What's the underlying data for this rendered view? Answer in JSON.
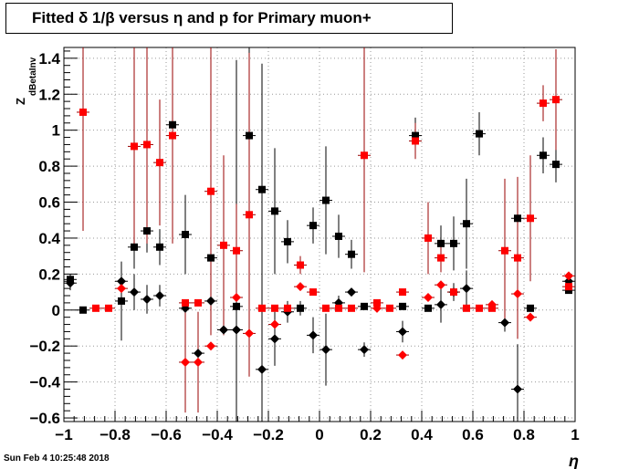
{
  "chart_data": {
    "type": "scatter",
    "title": "Fitted δ 1/β versus η and p for Primary muon+",
    "xlabel": "η",
    "ylabel": "Z",
    "ylabel_sub": "dBetaInv",
    "xlim": [
      -1,
      1
    ],
    "ylim": [
      -0.62,
      1.46
    ],
    "grid": true,
    "x_ticks": [
      "−1",
      "−0.8",
      "−0.6",
      "−0.4",
      "−0.2",
      "0",
      "0.2",
      "0.4",
      "0.6",
      "0.8",
      "1"
    ],
    "y_ticks": [
      "−0.6",
      "−0.4",
      "−0.2",
      "0",
      "0.2",
      "0.4",
      "0.6",
      "0.8",
      "1",
      "1.2",
      "1.4"
    ],
    "colors": {
      "black": "#000000",
      "red": "#ff0000",
      "red_error": "#990000"
    },
    "series": [
      {
        "marker": "square",
        "color": "black",
        "points": [
          {
            "x": -0.975,
            "y": 0.17,
            "err": 0.03
          },
          {
            "x": -0.925,
            "y": 0.0,
            "err": 0.0
          },
          {
            "x": -0.775,
            "y": 0.05,
            "err": 0.22
          },
          {
            "x": -0.725,
            "y": 0.35,
            "err": 0.12
          },
          {
            "x": -0.675,
            "y": 0.44,
            "err": 0.12
          },
          {
            "x": -0.625,
            "y": 0.35,
            "err": 0.1
          },
          {
            "x": -0.575,
            "y": 1.03,
            "err": 0.08
          },
          {
            "x": -0.525,
            "y": 0.42,
            "err": 0.22
          },
          {
            "x": -0.425,
            "y": 0.29,
            "err": 0.08
          },
          {
            "x": -0.325,
            "y": 0.02,
            "err": 0.05
          },
          {
            "x": -0.275,
            "y": 0.97,
            "err": 0.6
          },
          {
            "x": -0.225,
            "y": 0.67,
            "err": 0.7
          },
          {
            "x": -0.175,
            "y": 0.55,
            "err": 0.35
          },
          {
            "x": -0.125,
            "y": 0.38,
            "err": 0.12
          },
          {
            "x": -0.075,
            "y": 0.01,
            "err": 0.04
          },
          {
            "x": -0.025,
            "y": 0.47,
            "err": 0.1
          },
          {
            "x": 0.025,
            "y": 0.61,
            "err": 0.3
          },
          {
            "x": 0.075,
            "y": 0.41,
            "err": 0.12
          },
          {
            "x": 0.125,
            "y": 0.31,
            "err": 0.08
          },
          {
            "x": 0.175,
            "y": 0.02,
            "err": 0.0
          },
          {
            "x": 0.325,
            "y": 0.02,
            "err": 0.0
          },
          {
            "x": 0.375,
            "y": 0.97,
            "err": 0.1
          },
          {
            "x": 0.425,
            "y": 0.01,
            "err": 0.0
          },
          {
            "x": 0.475,
            "y": 0.37,
            "err": 0.1
          },
          {
            "x": 0.525,
            "y": 0.37,
            "err": 0.15
          },
          {
            "x": 0.575,
            "y": 0.48,
            "err": 0.25
          },
          {
            "x": 0.625,
            "y": 0.98,
            "err": 0.12
          },
          {
            "x": 0.775,
            "y": 0.51,
            "err": 0.2
          },
          {
            "x": 0.825,
            "y": 0.01,
            "err": 0.0
          },
          {
            "x": 0.875,
            "y": 0.86,
            "err": 0.1
          },
          {
            "x": 0.925,
            "y": 0.81,
            "err": 0.1
          },
          {
            "x": 0.975,
            "y": 0.11,
            "err": 0.02
          }
        ]
      },
      {
        "marker": "diamond",
        "color": "black",
        "points": [
          {
            "x": -0.975,
            "y": 0.15,
            "err": 0.04
          },
          {
            "x": -0.775,
            "y": 0.16,
            "err": 0.1
          },
          {
            "x": -0.725,
            "y": 0.1,
            "err": 0.1
          },
          {
            "x": -0.675,
            "y": 0.06,
            "err": 0.08
          },
          {
            "x": -0.625,
            "y": 0.08,
            "err": 0.06
          },
          {
            "x": -0.525,
            "y": 0.01,
            "err": 0.0
          },
          {
            "x": -0.475,
            "y": -0.24,
            "err": 0.05
          },
          {
            "x": -0.425,
            "y": 0.05,
            "err": 0.0
          },
          {
            "x": -0.375,
            "y": -0.11,
            "err": 0.0
          },
          {
            "x": -0.325,
            "y": -0.11,
            "err": 1.5
          },
          {
            "x": -0.225,
            "y": -0.33,
            "err": 1.3
          },
          {
            "x": -0.175,
            "y": -0.16,
            "err": 0.15
          },
          {
            "x": -0.125,
            "y": -0.01,
            "err": 0.06
          },
          {
            "x": -0.025,
            "y": -0.14,
            "err": 0.1
          },
          {
            "x": 0.025,
            "y": -0.22,
            "err": 0.2
          },
          {
            "x": 0.075,
            "y": 0.04,
            "err": 0.04
          },
          {
            "x": 0.125,
            "y": 0.1,
            "err": 0.0
          },
          {
            "x": 0.175,
            "y": -0.22,
            "err": 0.04
          },
          {
            "x": 0.325,
            "y": -0.12,
            "err": 0.06
          },
          {
            "x": 0.475,
            "y": 0.03,
            "err": 0.1
          },
          {
            "x": 0.525,
            "y": 0.1,
            "err": 0.05
          },
          {
            "x": 0.575,
            "y": 0.12,
            "err": 0.1
          },
          {
            "x": 0.725,
            "y": -0.07,
            "err": 0.05
          },
          {
            "x": 0.775,
            "y": -0.44,
            "err": 0.25
          },
          {
            "x": 0.975,
            "y": 0.16,
            "err": 0.02
          }
        ]
      },
      {
        "marker": "square",
        "color": "red",
        "points": [
          {
            "x": -0.925,
            "y": 1.1,
            "err": 0.66
          },
          {
            "x": -0.875,
            "y": 0.01,
            "err": 0.0
          },
          {
            "x": -0.825,
            "y": 0.01,
            "err": 0.0
          },
          {
            "x": -0.725,
            "y": 0.91,
            "err": 0.55
          },
          {
            "x": -0.675,
            "y": 0.92,
            "err": 0.55
          },
          {
            "x": -0.625,
            "y": 0.82,
            "err": 0.35
          },
          {
            "x": -0.575,
            "y": 0.97,
            "err": 0.6
          },
          {
            "x": -0.525,
            "y": 0.04,
            "err": 0.0
          },
          {
            "x": -0.475,
            "y": 0.04,
            "err": 0.0
          },
          {
            "x": -0.425,
            "y": 0.66,
            "err": 0.8
          },
          {
            "x": -0.375,
            "y": 0.36,
            "err": 0.5
          },
          {
            "x": -0.325,
            "y": 0.33,
            "err": 0.26
          },
          {
            "x": -0.275,
            "y": 0.53,
            "err": 0.9
          },
          {
            "x": -0.225,
            "y": 0.01,
            "err": 0.0
          },
          {
            "x": -0.175,
            "y": 0.01,
            "err": 0.0
          },
          {
            "x": -0.125,
            "y": 0.01,
            "err": 0.0
          },
          {
            "x": -0.075,
            "y": 0.25,
            "err": 0.05
          },
          {
            "x": -0.025,
            "y": 0.1,
            "err": 0.0
          },
          {
            "x": 0.025,
            "y": 0.01,
            "err": 0.0
          },
          {
            "x": 0.075,
            "y": 0.01,
            "err": 0.0
          },
          {
            "x": 0.125,
            "y": 0.01,
            "err": 0.0
          },
          {
            "x": 0.175,
            "y": 0.86,
            "err": 0.65
          },
          {
            "x": 0.225,
            "y": 0.04,
            "err": 0.0
          },
          {
            "x": 0.275,
            "y": 0.01,
            "err": 0.0
          },
          {
            "x": 0.325,
            "y": 0.1,
            "err": 0.0
          },
          {
            "x": 0.375,
            "y": 0.94,
            "err": 0.1
          },
          {
            "x": 0.425,
            "y": 0.4,
            "err": 0.2
          },
          {
            "x": 0.475,
            "y": 0.29,
            "err": 0.08
          },
          {
            "x": 0.525,
            "y": 0.1,
            "err": 0.0
          },
          {
            "x": 0.575,
            "y": 0.01,
            "err": 0.0
          },
          {
            "x": 0.625,
            "y": 0.01,
            "err": 0.0
          },
          {
            "x": 0.675,
            "y": 0.01,
            "err": 0.0
          },
          {
            "x": 0.725,
            "y": 0.33,
            "err": 0.4
          },
          {
            "x": 0.775,
            "y": 0.29,
            "err": 0.45
          },
          {
            "x": 0.825,
            "y": 0.51,
            "err": 0.35
          },
          {
            "x": 0.875,
            "y": 1.15,
            "err": 0.1
          },
          {
            "x": 0.925,
            "y": 1.17,
            "err": 0.28
          },
          {
            "x": 0.975,
            "y": 0.13,
            "err": 0.0
          }
        ]
      },
      {
        "marker": "diamond",
        "color": "red",
        "points": [
          {
            "x": -0.775,
            "y": 0.12,
            "err": 0.0
          },
          {
            "x": -0.525,
            "y": -0.29,
            "err": 0.28
          },
          {
            "x": -0.475,
            "y": -0.29,
            "err": 0.28
          },
          {
            "x": -0.425,
            "y": -0.2,
            "err": 0.0
          },
          {
            "x": -0.325,
            "y": 0.07,
            "err": 0.0
          },
          {
            "x": -0.275,
            "y": -0.13,
            "err": 0.0
          },
          {
            "x": -0.175,
            "y": -0.08,
            "err": 0.0
          },
          {
            "x": -0.075,
            "y": 0.13,
            "err": 0.0
          },
          {
            "x": 0.225,
            "y": 0.01,
            "err": 0.0
          },
          {
            "x": 0.325,
            "y": -0.25,
            "err": 0.0
          },
          {
            "x": 0.425,
            "y": 0.07,
            "err": 0.0
          },
          {
            "x": 0.475,
            "y": 0.14,
            "err": 0.0
          },
          {
            "x": 0.675,
            "y": 0.03,
            "err": 0.0
          },
          {
            "x": 0.775,
            "y": 0.09,
            "err": 0.0
          },
          {
            "x": 0.825,
            "y": -0.04,
            "err": 0.0
          },
          {
            "x": 0.975,
            "y": 0.19,
            "err": 0.0
          }
        ]
      }
    ]
  },
  "footer": {
    "datestamp": "Sun Feb  4 10:25:48 2018"
  }
}
